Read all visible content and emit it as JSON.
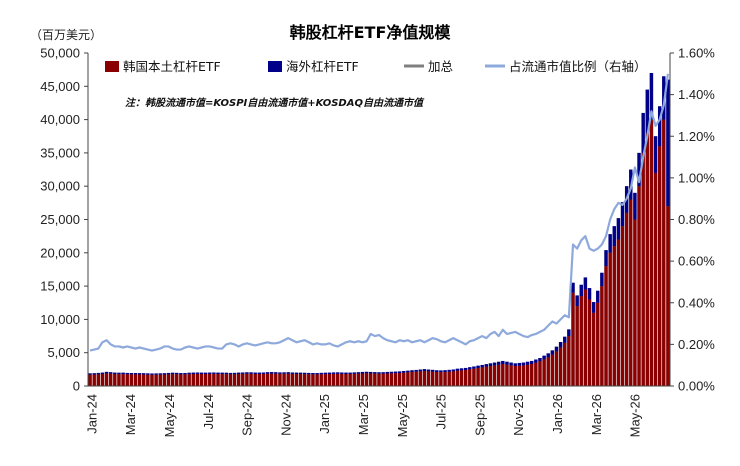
{
  "chart_data": {
    "type": "bar",
    "title": "韩股杠杆ETF净值规模",
    "y_unit_label": "（百万美元）",
    "note": "注：韩股流通市值=KOSPI自由流通市值+KOSDAQ自由流通市值",
    "x_tick_labels": [
      "Jan-24",
      "Mar-24",
      "May-24",
      "Jul-24",
      "Sep-24",
      "Nov-24",
      "Jan-25",
      "Mar-25",
      "May-25",
      "Jul-25",
      "Sep-25",
      "Nov-25",
      "Jan-26",
      "Mar-26",
      "May-26"
    ],
    "left_axis": {
      "min": 0,
      "max": 50000,
      "ticks": [
        "0",
        "5,000",
        "10,000",
        "15,000",
        "20,000",
        "25,000",
        "30,000",
        "35,000",
        "40,000",
        "45,000",
        "50,000"
      ]
    },
    "right_axis": {
      "min": 0,
      "max": 1.6,
      "ticks": [
        "0.00%",
        "0.20%",
        "0.40%",
        "0.60%",
        "0.80%",
        "1.00%",
        "1.20%",
        "1.40%",
        "1.60%"
      ]
    },
    "legend_position": "top",
    "series": [
      {
        "name": "韩国本土杠杆ETF",
        "type": "bar",
        "color": "#8B0000",
        "values": [
          1700,
          1720,
          1750,
          1800,
          1900,
          1850,
          1800,
          1780,
          1790,
          1760,
          1750,
          1740,
          1730,
          1720,
          1700,
          1680,
          1690,
          1700,
          1720,
          1750,
          1780,
          1760,
          1740,
          1750,
          1780,
          1800,
          1820,
          1800,
          1790,
          1810,
          1820,
          1800,
          1790,
          1780,
          1760,
          1770,
          1800,
          1820,
          1840,
          1830,
          1810,
          1800,
          1820,
          1850,
          1870,
          1850,
          1830,
          1840,
          1850,
          1820,
          1800,
          1790,
          1780,
          1760,
          1750,
          1740,
          1760,
          1780,
          1800,
          1820,
          1830,
          1810,
          1800,
          1800,
          1820,
          1850,
          1880,
          1900,
          1880,
          1860,
          1840,
          1850,
          1880,
          1900,
          1920,
          1950,
          2000,
          2050,
          2100,
          2150,
          2200,
          2250,
          2200,
          2150,
          2100,
          2080,
          2100,
          2150,
          2200,
          2300,
          2350,
          2400,
          2500,
          2600,
          2700,
          2800,
          2900,
          3000,
          3100,
          3200,
          3300,
          3200,
          3100,
          3000,
          3050,
          3100,
          3200,
          3300,
          3500,
          3700,
          4000,
          4300,
          4700,
          5200,
          5800,
          6500,
          7500,
          14000,
          12000,
          13500,
          14500,
          13000,
          11000,
          12500,
          15000,
          18000,
          20000,
          21000,
          22000,
          24000,
          26000,
          28000,
          25000,
          30000,
          35000,
          38000,
          40000,
          32000,
          36000,
          40000,
          27000
        ]
      },
      {
        "name": "海外杠杆ETF",
        "type": "bar",
        "color": "#00008B",
        "values": [
          200,
          200,
          210,
          210,
          220,
          220,
          210,
          210,
          210,
          200,
          200,
          200,
          200,
          200,
          200,
          200,
          200,
          200,
          200,
          210,
          210,
          210,
          200,
          200,
          210,
          210,
          210,
          210,
          210,
          210,
          210,
          210,
          210,
          210,
          200,
          200,
          210,
          210,
          220,
          220,
          210,
          210,
          210,
          220,
          220,
          220,
          210,
          210,
          220,
          210,
          210,
          210,
          200,
          200,
          200,
          200,
          210,
          210,
          210,
          220,
          220,
          220,
          210,
          210,
          220,
          220,
          230,
          230,
          230,
          220,
          220,
          220,
          230,
          230,
          240,
          240,
          250,
          250,
          260,
          260,
          270,
          280,
          270,
          270,
          260,
          260,
          270,
          270,
          280,
          290,
          300,
          310,
          320,
          330,
          350,
          360,
          380,
          400,
          420,
          440,
          460,
          440,
          420,
          400,
          410,
          420,
          440,
          460,
          480,
          500,
          550,
          600,
          650,
          700,
          800,
          900,
          1000,
          1500,
          1600,
          1700,
          1800,
          1700,
          1600,
          1800,
          2000,
          2400,
          2800,
          3000,
          3200,
          3600,
          4000,
          4500,
          4000,
          5000,
          6000,
          6500,
          7000,
          5500,
          6000,
          6500,
          19000
        ]
      },
      {
        "name": "加总",
        "type": "bar",
        "color": "#7f7f7f",
        "values": [
          1900,
          1920,
          1960,
          2010,
          2120,
          2070,
          2010,
          1990,
          2000,
          1960,
          1950,
          1940,
          1930,
          1920,
          1900,
          1880,
          1890,
          1900,
          1920,
          1960,
          1990,
          1970,
          1940,
          1950,
          1990,
          2010,
          2030,
          2010,
          2000,
          2020,
          2030,
          2010,
          2000,
          1990,
          1960,
          1970,
          2010,
          2030,
          2060,
          2050,
          2020,
          2010,
          2030,
          2070,
          2090,
          2070,
          2040,
          2050,
          2070,
          2030,
          2010,
          2000,
          1980,
          1960,
          1950,
          1940,
          1970,
          1990,
          2010,
          2040,
          2050,
          2030,
          2010,
          2010,
          2040,
          2070,
          2110,
          2130,
          2110,
          2080,
          2060,
          2070,
          2110,
          2130,
          2160,
          2190,
          2250,
          2300,
          2360,
          2410,
          2470,
          2530,
          2470,
          2420,
          2360,
          2340,
          2370,
          2420,
          2480,
          2590,
          2650,
          2710,
          2820,
          2930,
          3050,
          3160,
          3280,
          3400,
          3520,
          3640,
          3760,
          3640,
          3520,
          3400,
          3460,
          3520,
          3640,
          3760,
          3980,
          4200,
          4550,
          4900,
          5350,
          5900,
          6600,
          7400,
          8500,
          15500,
          13600,
          15200,
          16300,
          14700,
          12600,
          14300,
          17000,
          20400,
          22800,
          24000,
          25200,
          27600,
          30000,
          32500,
          29000,
          35000,
          41000,
          44500,
          47000,
          37500,
          42000,
          46500,
          46000
        ]
      },
      {
        "name": "占流通市值比例（右轴）",
        "type": "line",
        "axis": "right",
        "color": "#8EA9DB",
        "values": [
          0.17,
          0.175,
          0.18,
          0.21,
          0.22,
          0.2,
          0.19,
          0.19,
          0.185,
          0.19,
          0.185,
          0.18,
          0.185,
          0.18,
          0.175,
          0.17,
          0.175,
          0.18,
          0.19,
          0.19,
          0.18,
          0.175,
          0.175,
          0.185,
          0.19,
          0.185,
          0.18,
          0.185,
          0.19,
          0.19,
          0.185,
          0.18,
          0.18,
          0.2,
          0.205,
          0.2,
          0.19,
          0.2,
          0.205,
          0.2,
          0.195,
          0.2,
          0.205,
          0.21,
          0.205,
          0.205,
          0.21,
          0.22,
          0.23,
          0.22,
          0.21,
          0.215,
          0.22,
          0.21,
          0.2,
          0.205,
          0.2,
          0.2,
          0.205,
          0.195,
          0.19,
          0.2,
          0.21,
          0.215,
          0.21,
          0.215,
          0.21,
          0.215,
          0.25,
          0.24,
          0.245,
          0.23,
          0.22,
          0.215,
          0.21,
          0.22,
          0.215,
          0.22,
          0.21,
          0.215,
          0.22,
          0.21,
          0.22,
          0.23,
          0.225,
          0.215,
          0.21,
          0.22,
          0.23,
          0.22,
          0.21,
          0.2,
          0.215,
          0.22,
          0.23,
          0.24,
          0.23,
          0.25,
          0.26,
          0.24,
          0.27,
          0.25,
          0.255,
          0.26,
          0.25,
          0.24,
          0.235,
          0.245,
          0.25,
          0.26,
          0.27,
          0.29,
          0.31,
          0.3,
          0.32,
          0.34,
          0.33,
          0.68,
          0.66,
          0.7,
          0.72,
          0.66,
          0.65,
          0.66,
          0.68,
          0.72,
          0.8,
          0.85,
          0.88,
          0.87,
          0.9,
          0.95,
          1.05,
          0.98,
          1.1,
          1.2,
          1.32,
          1.25,
          1.28,
          1.35,
          1.5
        ]
      }
    ]
  }
}
